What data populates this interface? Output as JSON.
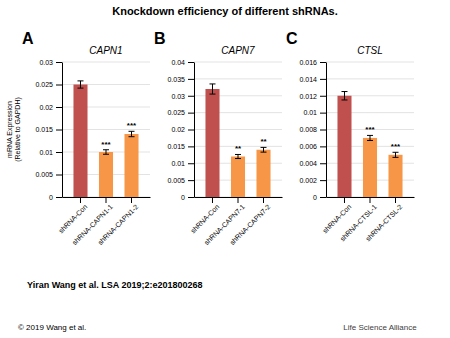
{
  "title": "Knockdown efficiency of different shRNAs.",
  "annotations": [
    "Yiran Wang et al. LSA 2019;2:e201800268",
    "© 2019 Wang et al.",
    "Life Science Alliance"
  ],
  "chart_data": [
    {
      "type": "bar",
      "title": "CAPN1",
      "annotations": [
        "A"
      ],
      "ylabel": "mRNA Expression\n(Relative to GAPDH)",
      "categories": [
        "shRNA-Con",
        "shRNA-CAPN1-1",
        "shRNA-CAPN1-2"
      ],
      "values": [
        0.025,
        0.01,
        0.014
      ],
      "errors": [
        0.0008,
        0.0005,
        0.0006
      ],
      "significance": [
        null,
        "***",
        "***"
      ],
      "colors": [
        "#c0504d",
        "#f79646",
        "#f79646"
      ],
      "ylim": [
        0,
        0.03
      ],
      "yticks": [
        0,
        0.005,
        0.01,
        0.015,
        0.02,
        0.025,
        0.03
      ],
      "grid": true
    },
    {
      "type": "bar",
      "title": "CAPN7",
      "annotations": [
        "B"
      ],
      "categories": [
        "shRNA-Con",
        "shRNA-CAPN7-1",
        "shRNA-CAPN7-2"
      ],
      "values": [
        0.032,
        0.012,
        0.014
      ],
      "errors": [
        0.0015,
        0.0006,
        0.0007
      ],
      "significance": [
        null,
        "**",
        "**"
      ],
      "colors": [
        "#c0504d",
        "#f79646",
        "#f79646"
      ],
      "ylim": [
        0,
        0.04
      ],
      "yticks": [
        0,
        0.005,
        0.01,
        0.015,
        0.02,
        0.025,
        0.03,
        0.035,
        0.04
      ],
      "grid": true
    },
    {
      "type": "bar",
      "title": "CTSL",
      "annotations": [
        "C"
      ],
      "categories": [
        "shRNA-Con",
        "shRNA-CTSL-1",
        "shRNA-CTSL-2"
      ],
      "values": [
        0.012,
        0.007,
        0.005
      ],
      "errors": [
        0.0005,
        0.0003,
        0.0003
      ],
      "significance": [
        null,
        "***",
        "***"
      ],
      "colors": [
        "#c0504d",
        "#f79646",
        "#f79646"
      ],
      "ylim": [
        0,
        0.016
      ],
      "yticks": [
        0,
        0.002,
        0.004,
        0.006,
        0.008,
        0.01,
        0.012,
        0.014,
        0.016
      ],
      "grid": true
    }
  ]
}
